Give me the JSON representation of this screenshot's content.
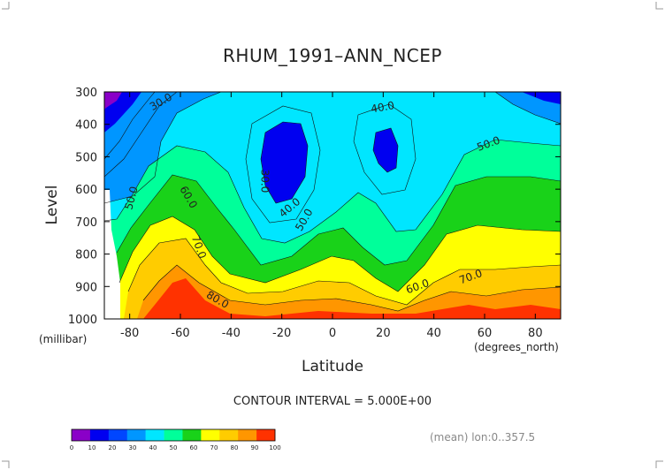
{
  "chart_data": {
    "type": "contour",
    "title": "RHUM_1991–ANN_NCEP",
    "xlabel": "Latitude",
    "ylabel": "Level",
    "x_units": "(degrees_north)",
    "y_units": "(millibar)",
    "xlim": [
      -90,
      90
    ],
    "ylim": [
      1000,
      300
    ],
    "x_ticks": [
      -80,
      -60,
      -40,
      -20,
      0,
      20,
      40,
      60,
      80
    ],
    "x_tick_labels": [
      "-80",
      "-60",
      "-40",
      "-20",
      "0",
      "20",
      "40",
      "60",
      "80"
    ],
    "y_ticks": [
      300,
      400,
      500,
      600,
      700,
      800,
      900,
      1000
    ],
    "y_tick_labels": [
      "300",
      "400",
      "500",
      "600",
      "700",
      "800",
      "900",
      "1000"
    ],
    "contour_interval_text": "CONTOUR INTERVAL = 5.000E+00",
    "contour_labels": [
      {
        "text": "30.0",
        "x": -67,
        "y": 340,
        "angle": -30
      },
      {
        "text": "40.0",
        "x": 20,
        "y": 358,
        "angle": -10
      },
      {
        "text": "50.0",
        "x": 62,
        "y": 470,
        "angle": -20
      },
      {
        "text": "50.0",
        "x": -78,
        "y": 630,
        "angle": -75
      },
      {
        "text": "60.0",
        "x": -58,
        "y": 630,
        "angle": 60
      },
      {
        "text": "30.0",
        "x": -28,
        "y": 575,
        "angle": 90
      },
      {
        "text": "40.0",
        "x": -16,
        "y": 665,
        "angle": -40
      },
      {
        "text": "50.0",
        "x": -10,
        "y": 700,
        "angle": -60
      },
      {
        "text": "70.0",
        "x": -54,
        "y": 782,
        "angle": 70
      },
      {
        "text": "60.0",
        "x": 34,
        "y": 910,
        "angle": -20
      },
      {
        "text": "70.0",
        "x": 55,
        "y": 880,
        "angle": -20
      },
      {
        "text": "80.0",
        "x": -46,
        "y": 950,
        "angle": 30
      }
    ],
    "colorbar": {
      "levels": [
        0,
        10,
        20,
        30,
        40,
        50,
        60,
        70,
        80,
        90,
        100
      ],
      "labels": [
        "0",
        "10",
        "20",
        "30",
        "40",
        "50",
        "60",
        "70",
        "80",
        "90",
        "100"
      ],
      "colors": [
        "#8a00c8",
        "#0000f0",
        "#0046ff",
        "#0096ff",
        "#00e6ff",
        "#00ff9a",
        "#19d219",
        "#ffff00",
        "#ffcc00",
        "#ff9600",
        "#ff3200"
      ]
    },
    "footer_text": "(mean) lon:0..357.5"
  }
}
